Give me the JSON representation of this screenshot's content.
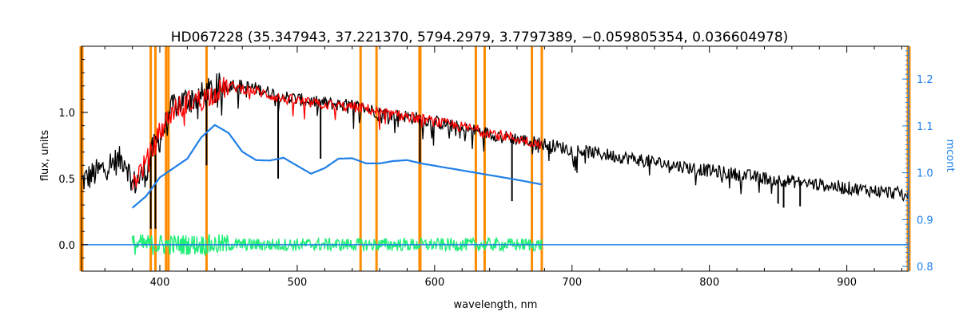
{
  "colors": {
    "observed": "#000000",
    "model": "#ff0000",
    "residual": "#22ee77",
    "continuum": "#1f7fe8",
    "mask": "#ff8c00",
    "highlight": "#ffff00"
  },
  "chart_data": {
    "type": "line",
    "title": "HD067228    (35.347943, 37.221370, 5794.2979, 3.7797389, −0.059805354, 0.036604978)",
    "xlabel": "wavelength, nm",
    "ylabel": "flux, units",
    "y2label": "mcont",
    "xlim": [
      343,
      945
    ],
    "ylim": [
      -0.2,
      1.5
    ],
    "y2lim": [
      0.79,
      1.27
    ],
    "xticks": [
      400,
      500,
      600,
      700,
      800,
      900
    ],
    "yticks": [
      0.0,
      0.5,
      1.0
    ],
    "ytick_labels": [
      "0.0",
      "0.5",
      "1.0"
    ],
    "y2ticks": [
      0.8,
      0.9,
      1.0,
      1.1,
      1.2
    ],
    "y2tick_labels": [
      "0.8",
      "0.9",
      "1.0",
      "1.1",
      "1.2"
    ],
    "grid": false,
    "mask_lines_nm": [
      393.4,
      396.8,
      404.5,
      406.3,
      434.0,
      546.1,
      557.7,
      589.0,
      589.6,
      630.0,
      636.4,
      670.8,
      678.0
    ],
    "edge_lines_nm": [
      343,
      945
    ],
    "series": [
      {
        "style": "observed",
        "x": [
          343,
          355,
          365,
          375,
          380,
          390,
          395,
          400,
          410,
          420,
          430,
          440,
          450,
          460,
          470,
          480,
          490,
          500,
          510,
          520,
          530,
          540,
          550,
          560,
          570,
          580,
          590,
          600,
          620,
          640,
          660,
          680,
          700,
          750,
          800,
          850,
          900,
          945
        ],
        "y": [
          0.48,
          0.55,
          0.62,
          0.65,
          0.45,
          0.55,
          0.72,
          0.8,
          1.05,
          1.1,
          1.12,
          1.18,
          1.22,
          1.2,
          1.18,
          1.15,
          1.12,
          1.1,
          1.08,
          1.07,
          1.06,
          1.05,
          1.03,
          1.0,
          0.98,
          0.97,
          0.95,
          0.93,
          0.88,
          0.84,
          0.8,
          0.76,
          0.72,
          0.64,
          0.56,
          0.49,
          0.43,
          0.38
        ]
      },
      {
        "style": "model",
        "x": [
          380,
          385,
          390,
          395,
          400,
          410,
          420,
          430,
          440,
          450,
          460,
          470,
          480,
          490,
          500,
          510,
          520,
          530,
          540,
          550,
          560,
          570,
          580,
          590,
          600,
          620,
          640,
          660,
          678
        ],
        "y": [
          0.45,
          0.55,
          0.62,
          0.72,
          0.85,
          1.02,
          1.08,
          1.1,
          1.15,
          1.2,
          1.18,
          1.16,
          1.13,
          1.1,
          1.09,
          1.07,
          1.06,
          1.05,
          1.04,
          1.03,
          1.0,
          0.98,
          0.97,
          0.95,
          0.93,
          0.89,
          0.85,
          0.8,
          0.76
        ]
      },
      {
        "style": "continuum",
        "axis": "right",
        "x": [
          380,
          390,
          400,
          410,
          420,
          430,
          440,
          450,
          460,
          470,
          480,
          490,
          500,
          510,
          520,
          530,
          540,
          550,
          560,
          570,
          580,
          590,
          600,
          620,
          640,
          660,
          678
        ],
        "y": [
          0.925,
          0.95,
          0.99,
          1.01,
          1.03,
          1.075,
          1.102,
          1.085,
          1.045,
          1.027,
          1.026,
          1.032,
          1.015,
          0.998,
          1.01,
          1.03,
          1.031,
          1.02,
          1.02,
          1.025,
          1.027,
          1.02,
          1.015,
          1.005,
          0.995,
          0.985,
          0.975
        ]
      },
      {
        "style": "residual",
        "x": [
          380,
          678
        ],
        "y": [
          0.0,
          0.0
        ],
        "scatter": 0.05
      },
      {
        "style": "zero-line",
        "x": [
          343,
          945
        ],
        "y": [
          0.0,
          0.0
        ]
      }
    ]
  }
}
